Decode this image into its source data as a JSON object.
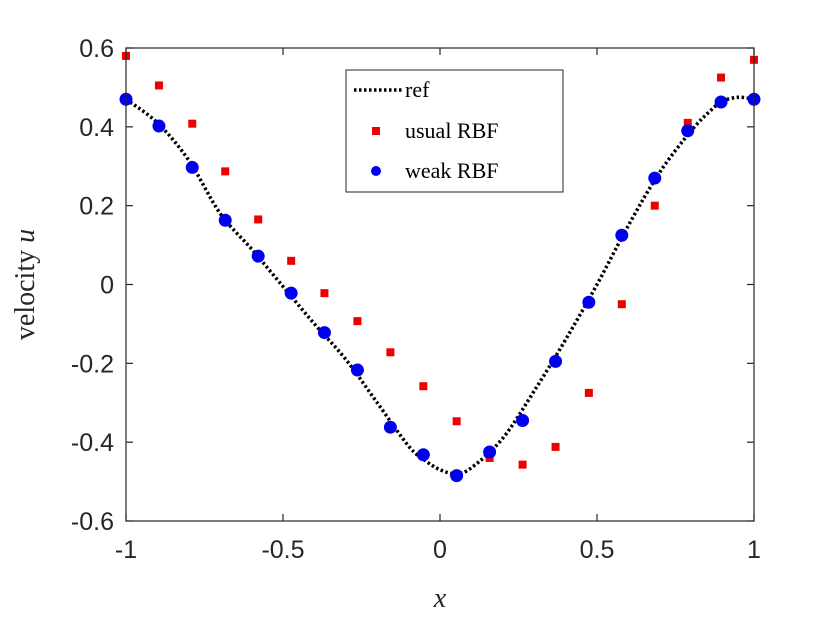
{
  "chart_data": {
    "type": "line",
    "xlabel_text": "",
    "xlabel_var": "x",
    "ylabel_text": "velocity ",
    "ylabel_var": "u",
    "xlim": [
      -1,
      1
    ],
    "ylim": [
      -0.6,
      0.6
    ],
    "xticks": [
      -1,
      -0.5,
      0,
      0.5,
      1
    ],
    "xtick_labels": [
      "-1",
      "-0.5",
      "0",
      "0.5",
      "1"
    ],
    "yticks": [
      -0.6,
      -0.4,
      -0.2,
      0,
      0.2,
      0.4,
      0.6
    ],
    "ytick_labels": [
      "-0.6",
      "-0.4",
      "-0.2",
      "0",
      "0.2",
      "0.4",
      "0.6"
    ],
    "grid": false,
    "legend_position": "top-center",
    "series": [
      {
        "name": "ref",
        "style": "dotted-line",
        "color": "#000000",
        "x": [
          -1.0,
          -0.9,
          -0.8,
          -0.7,
          -0.6,
          -0.5,
          -0.4,
          -0.3,
          -0.2,
          -0.1,
          -0.05,
          0.0,
          0.05,
          0.1,
          0.2,
          0.3,
          0.4,
          0.5,
          0.6,
          0.7,
          0.8,
          0.86,
          0.9,
          0.95,
          1.0
        ],
        "y": [
          0.47,
          0.41,
          0.315,
          0.18,
          0.09,
          -0.005,
          -0.1,
          -0.19,
          -0.3,
          -0.41,
          -0.445,
          -0.47,
          -0.48,
          -0.465,
          -0.39,
          -0.27,
          -0.14,
          0.0,
          0.15,
          0.285,
          0.39,
          0.44,
          0.465,
          0.475,
          0.47
        ]
      },
      {
        "name": "usual RBF",
        "style": "square-markers",
        "color": "#ee0000",
        "x": [
          -1.0,
          -0.895,
          -0.789,
          -0.684,
          -0.579,
          -0.474,
          -0.368,
          -0.263,
          -0.158,
          -0.053,
          0.053,
          0.158,
          0.263,
          0.368,
          0.474,
          0.579,
          0.684,
          0.789,
          0.895,
          1.0
        ],
        "y": [
          0.58,
          0.505,
          0.408,
          0.287,
          0.165,
          0.06,
          -0.022,
          -0.093,
          -0.172,
          -0.258,
          -0.347,
          -0.44,
          -0.457,
          -0.412,
          -0.275,
          -0.05,
          0.2,
          0.41,
          0.525,
          0.57
        ]
      },
      {
        "name": "weak RBF",
        "style": "circle-markers",
        "color": "#0000ee",
        "x": [
          -1.0,
          -0.895,
          -0.789,
          -0.684,
          -0.579,
          -0.474,
          -0.368,
          -0.263,
          -0.158,
          -0.053,
          0.053,
          0.158,
          0.263,
          0.368,
          0.474,
          0.579,
          0.684,
          0.789,
          0.895,
          1.0
        ],
        "y": [
          0.47,
          0.402,
          0.297,
          0.163,
          0.072,
          -0.022,
          -0.122,
          -0.217,
          -0.362,
          -0.432,
          -0.485,
          -0.425,
          -0.345,
          -0.195,
          -0.045,
          0.125,
          0.27,
          0.39,
          0.463,
          0.47
        ]
      }
    ]
  }
}
